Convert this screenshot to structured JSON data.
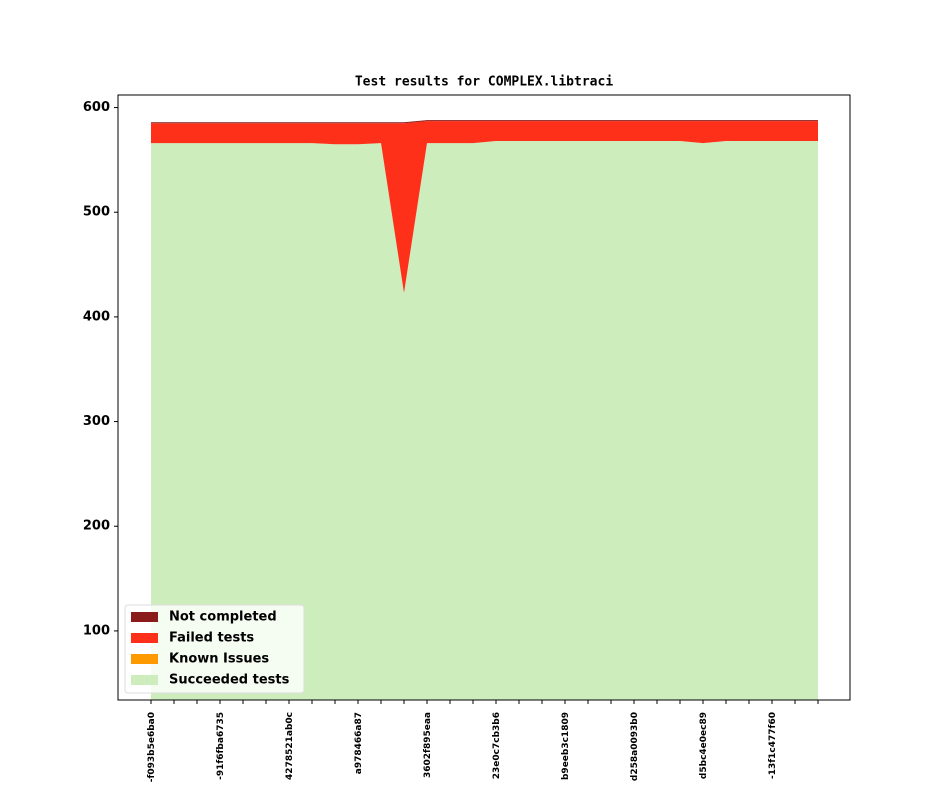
{
  "chart_data": {
    "type": "stackplot",
    "title": "Test results for COMPLEX.libtraci",
    "categories": [
      "-f093b5e6ba0",
      null,
      null,
      "-91f6fba6735",
      null,
      null,
      "4278521ab0c",
      null,
      null,
      "a978466a87",
      null,
      null,
      "3602f895eaa",
      null,
      null,
      "23e0c7cb3b6",
      null,
      null,
      "b9eeb3c1809",
      null,
      null,
      "d258a0093b0",
      null,
      null,
      "d5bc4e0ec89",
      null,
      null,
      "-13f1c477f60",
      null,
      null
    ],
    "series": [
      {
        "name": "Not completed",
        "color": "#8b1a1a",
        "values": [
          1,
          1,
          1,
          1,
          1,
          1,
          1,
          1,
          1,
          1,
          1,
          1,
          1,
          1,
          1,
          1,
          1,
          1,
          1,
          1,
          1,
          1,
          1,
          1,
          1,
          1,
          1,
          1,
          1,
          1
        ]
      },
      {
        "name": "Failed tests",
        "color": "#ff3019",
        "values": [
          19,
          19,
          19,
          19,
          19,
          19,
          19,
          19,
          20,
          20,
          19,
          162,
          21,
          21,
          21,
          19,
          19,
          19,
          19,
          19,
          19,
          19,
          19,
          19,
          21,
          19,
          19,
          19,
          19,
          19
        ]
      },
      {
        "name": "Known Issues",
        "color": "#ff9900",
        "values": [
          0,
          0,
          0,
          0,
          0,
          0,
          0,
          0,
          0,
          0,
          0,
          0,
          0,
          0,
          0,
          0,
          0,
          0,
          0,
          0,
          0,
          0,
          0,
          0,
          0,
          0,
          0,
          0,
          0,
          0
        ]
      },
      {
        "name": "Succeeded tests",
        "color": "#cdedbd",
        "values": [
          566,
          566,
          566,
          566,
          566,
          566,
          566,
          566,
          565,
          565,
          566,
          423,
          566,
          566,
          566,
          568,
          568,
          568,
          568,
          568,
          568,
          568,
          568,
          568,
          566,
          568,
          568,
          568,
          568,
          568
        ]
      }
    ],
    "ylim": [
      34,
      612
    ],
    "yticks": [
      100,
      200,
      300,
      400,
      500,
      600
    ],
    "legend": "lower left"
  }
}
